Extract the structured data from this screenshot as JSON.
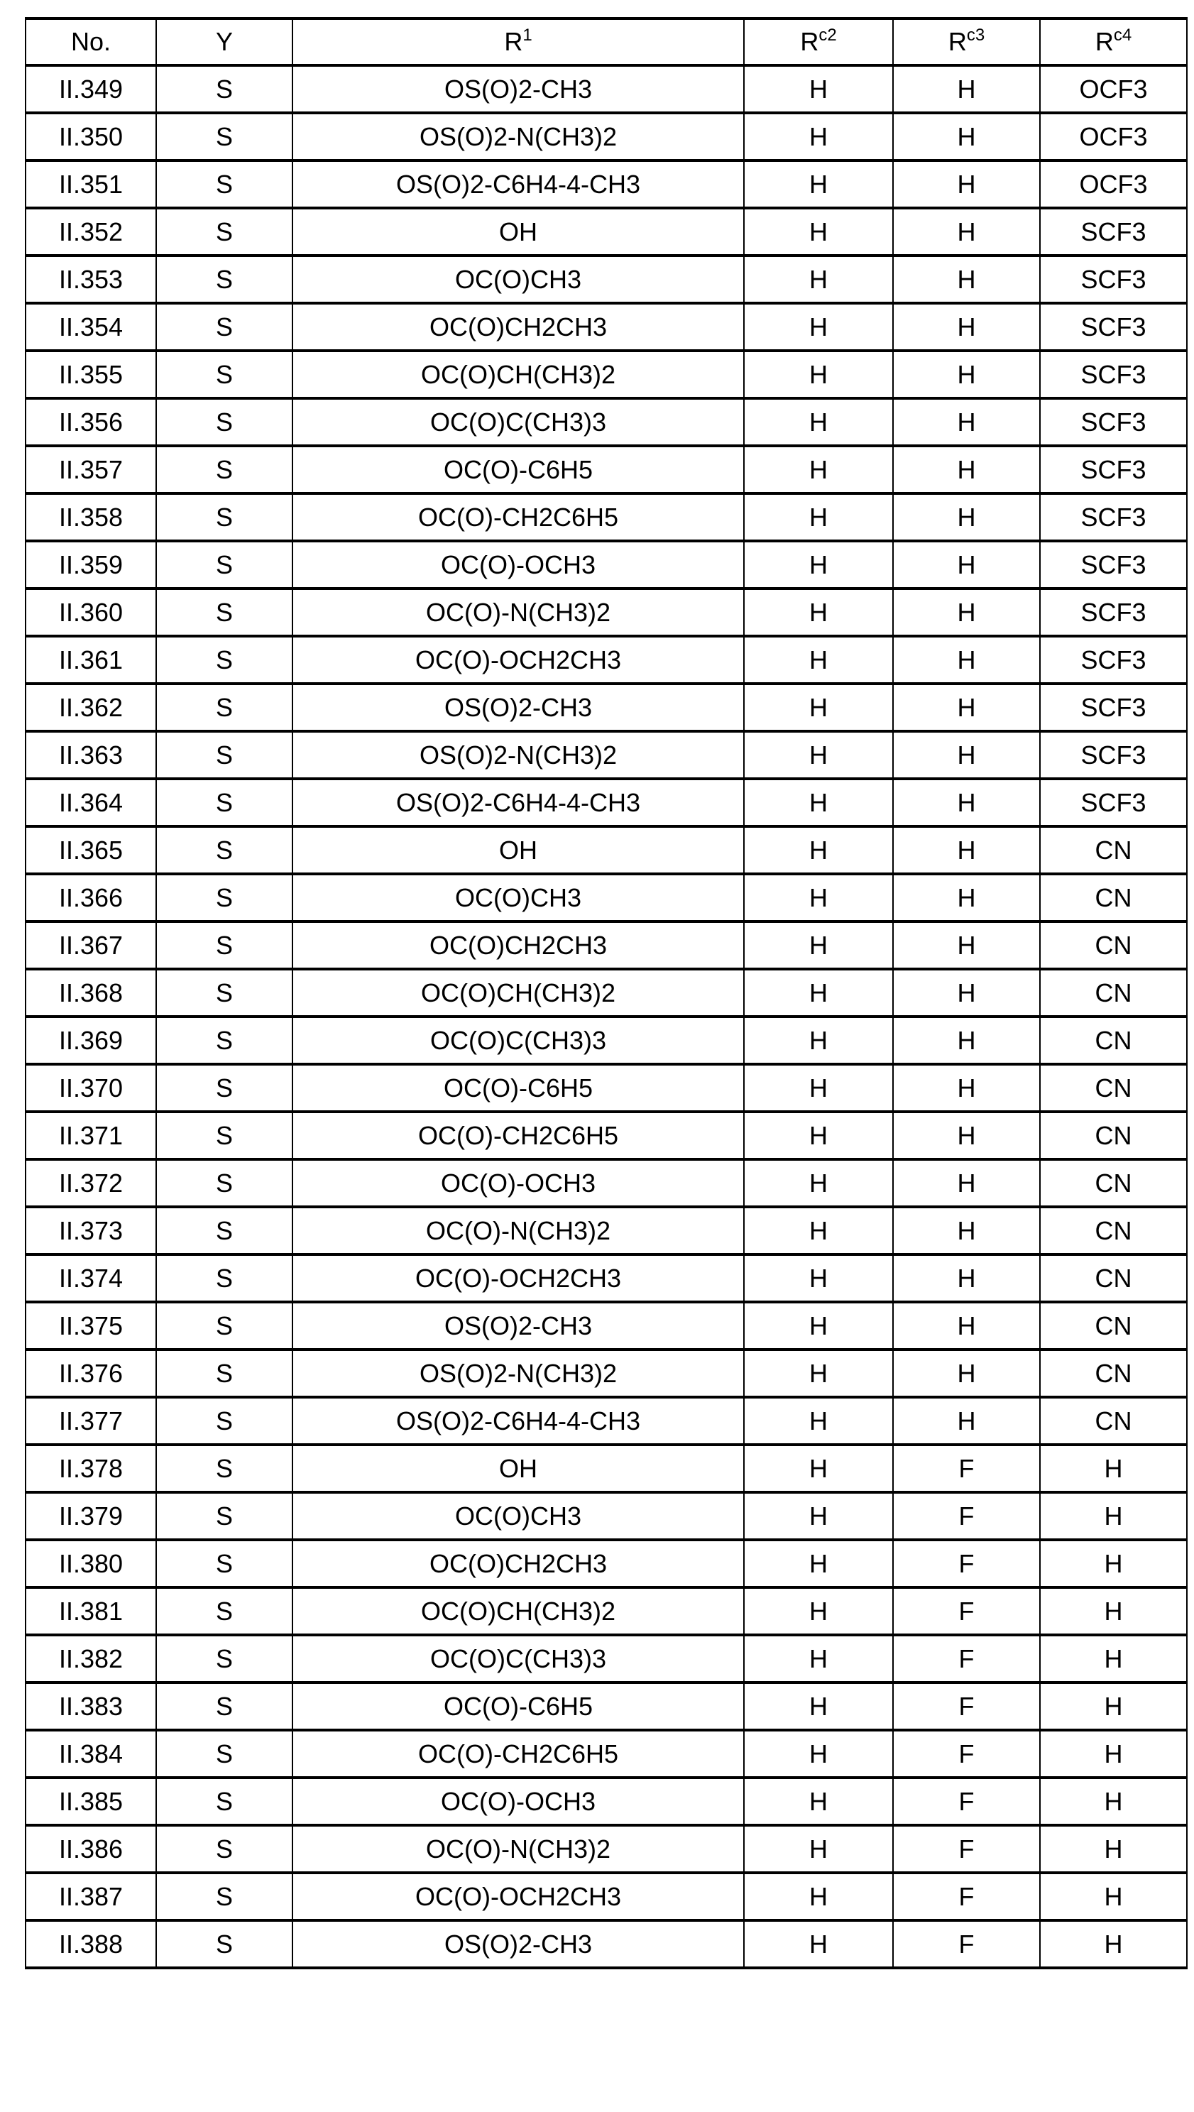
{
  "table": {
    "headers": [
      {
        "base": "No.",
        "sup": ""
      },
      {
        "base": "Y",
        "sup": ""
      },
      {
        "base": "R",
        "sup": "1"
      },
      {
        "base": "R",
        "sup": "c2"
      },
      {
        "base": "R",
        "sup": "c3"
      },
      {
        "base": "R",
        "sup": "c4"
      }
    ],
    "rows": [
      [
        "II.349",
        "S",
        "OS(O)2-CH3",
        "H",
        "H",
        "OCF3"
      ],
      [
        "II.350",
        "S",
        "OS(O)2-N(CH3)2",
        "H",
        "H",
        "OCF3"
      ],
      [
        "II.351",
        "S",
        "OS(O)2-C6H4-4-CH3",
        "H",
        "H",
        "OCF3"
      ],
      [
        "II.352",
        "S",
        "OH",
        "H",
        "H",
        "SCF3"
      ],
      [
        "II.353",
        "S",
        "OC(O)CH3",
        "H",
        "H",
        "SCF3"
      ],
      [
        "II.354",
        "S",
        "OC(O)CH2CH3",
        "H",
        "H",
        "SCF3"
      ],
      [
        "II.355",
        "S",
        "OC(O)CH(CH3)2",
        "H",
        "H",
        "SCF3"
      ],
      [
        "II.356",
        "S",
        "OC(O)C(CH3)3",
        "H",
        "H",
        "SCF3"
      ],
      [
        "II.357",
        "S",
        "OC(O)-C6H5",
        "H",
        "H",
        "SCF3"
      ],
      [
        "II.358",
        "S",
        "OC(O)-CH2C6H5",
        "H",
        "H",
        "SCF3"
      ],
      [
        "II.359",
        "S",
        "OC(O)-OCH3",
        "H",
        "H",
        "SCF3"
      ],
      [
        "II.360",
        "S",
        "OC(O)-N(CH3)2",
        "H",
        "H",
        "SCF3"
      ],
      [
        "II.361",
        "S",
        "OC(O)-OCH2CH3",
        "H",
        "H",
        "SCF3"
      ],
      [
        "II.362",
        "S",
        "OS(O)2-CH3",
        "H",
        "H",
        "SCF3"
      ],
      [
        "II.363",
        "S",
        "OS(O)2-N(CH3)2",
        "H",
        "H",
        "SCF3"
      ],
      [
        "II.364",
        "S",
        "OS(O)2-C6H4-4-CH3",
        "H",
        "H",
        "SCF3"
      ],
      [
        "II.365",
        "S",
        "OH",
        "H",
        "H",
        "CN"
      ],
      [
        "II.366",
        "S",
        "OC(O)CH3",
        "H",
        "H",
        "CN"
      ],
      [
        "II.367",
        "S",
        "OC(O)CH2CH3",
        "H",
        "H",
        "CN"
      ],
      [
        "II.368",
        "S",
        "OC(O)CH(CH3)2",
        "H",
        "H",
        "CN"
      ],
      [
        "II.369",
        "S",
        "OC(O)C(CH3)3",
        "H",
        "H",
        "CN"
      ],
      [
        "II.370",
        "S",
        "OC(O)-C6H5",
        "H",
        "H",
        "CN"
      ],
      [
        "II.371",
        "S",
        "OC(O)-CH2C6H5",
        "H",
        "H",
        "CN"
      ],
      [
        "II.372",
        "S",
        "OC(O)-OCH3",
        "H",
        "H",
        "CN"
      ],
      [
        "II.373",
        "S",
        "OC(O)-N(CH3)2",
        "H",
        "H",
        "CN"
      ],
      [
        "II.374",
        "S",
        "OC(O)-OCH2CH3",
        "H",
        "H",
        "CN"
      ],
      [
        "II.375",
        "S",
        "OS(O)2-CH3",
        "H",
        "H",
        "CN"
      ],
      [
        "II.376",
        "S",
        "OS(O)2-N(CH3)2",
        "H",
        "H",
        "CN"
      ],
      [
        "II.377",
        "S",
        "OS(O)2-C6H4-4-CH3",
        "H",
        "H",
        "CN"
      ],
      [
        "II.378",
        "S",
        "OH",
        "H",
        "F",
        "H"
      ],
      [
        "II.379",
        "S",
        "OC(O)CH3",
        "H",
        "F",
        "H"
      ],
      [
        "II.380",
        "S",
        "OC(O)CH2CH3",
        "H",
        "F",
        "H"
      ],
      [
        "II.381",
        "S",
        "OC(O)CH(CH3)2",
        "H",
        "F",
        "H"
      ],
      [
        "II.382",
        "S",
        "OC(O)C(CH3)3",
        "H",
        "F",
        "H"
      ],
      [
        "II.383",
        "S",
        "OC(O)-C6H5",
        "H",
        "F",
        "H"
      ],
      [
        "II.384",
        "S",
        "OC(O)-CH2C6H5",
        "H",
        "F",
        "H"
      ],
      [
        "II.385",
        "S",
        "OC(O)-OCH3",
        "H",
        "F",
        "H"
      ],
      [
        "II.386",
        "S",
        "OC(O)-N(CH3)2",
        "H",
        "F",
        "H"
      ],
      [
        "II.387",
        "S",
        "OC(O)-OCH2CH3",
        "H",
        "F",
        "H"
      ],
      [
        "II.388",
        "S",
        "OS(O)2-CH3",
        "H",
        "F",
        "H"
      ]
    ]
  }
}
